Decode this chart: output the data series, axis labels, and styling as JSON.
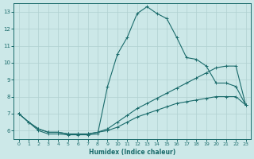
{
  "xlabel": "Humidex (Indice chaleur)",
  "xlim": [
    -0.5,
    23.5
  ],
  "ylim": [
    5.5,
    13.5
  ],
  "yticks": [
    6,
    7,
    8,
    9,
    10,
    11,
    12,
    13
  ],
  "xticks": [
    0,
    1,
    2,
    3,
    4,
    5,
    6,
    7,
    8,
    9,
    10,
    11,
    12,
    13,
    14,
    15,
    16,
    17,
    18,
    19,
    20,
    21,
    22,
    23
  ],
  "bg_color": "#cce8e8",
  "line_color": "#1a6b6b",
  "grid_color": "#b0d0d0",
  "line1_x": [
    0,
    1,
    2,
    3,
    4,
    5,
    6,
    7,
    8,
    9,
    10,
    11,
    12,
    13,
    14,
    15,
    16,
    17,
    18,
    19,
    20,
    21,
    22,
    23
  ],
  "line1_y": [
    7.0,
    6.5,
    6.0,
    5.8,
    5.8,
    5.75,
    5.75,
    5.75,
    5.8,
    8.6,
    10.5,
    11.5,
    12.9,
    13.3,
    12.9,
    12.6,
    11.5,
    10.3,
    10.2,
    9.8,
    8.8,
    8.8,
    8.6,
    7.5
  ],
  "line2_x": [
    0,
    1,
    2,
    3,
    4,
    5,
    6,
    7,
    8,
    9,
    10,
    11,
    12,
    13,
    14,
    15,
    16,
    17,
    18,
    19,
    20,
    21,
    22,
    23
  ],
  "line2_y": [
    7.0,
    6.5,
    6.1,
    5.9,
    5.9,
    5.8,
    5.8,
    5.8,
    5.9,
    6.1,
    6.5,
    6.9,
    7.3,
    7.6,
    7.9,
    8.2,
    8.5,
    8.8,
    9.1,
    9.4,
    9.7,
    9.8,
    9.8,
    7.5
  ],
  "line3_x": [
    0,
    1,
    2,
    3,
    4,
    5,
    6,
    7,
    8,
    9,
    10,
    11,
    12,
    13,
    14,
    15,
    16,
    17,
    18,
    19,
    20,
    21,
    22,
    23
  ],
  "line3_y": [
    7.0,
    6.5,
    6.1,
    5.9,
    5.9,
    5.8,
    5.8,
    5.8,
    5.9,
    6.0,
    6.2,
    6.5,
    6.8,
    7.0,
    7.2,
    7.4,
    7.6,
    7.7,
    7.8,
    7.9,
    8.0,
    8.0,
    8.0,
    7.5
  ]
}
